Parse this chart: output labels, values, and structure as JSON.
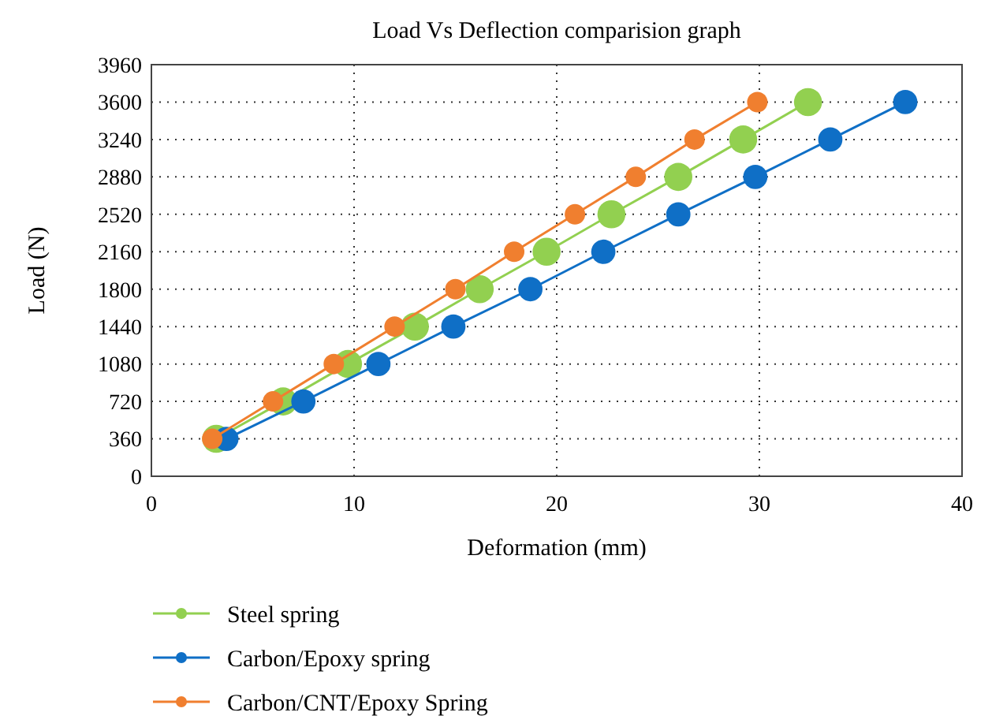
{
  "chart_data": {
    "type": "line",
    "title": "Load Vs Deflection comparision graph",
    "xlabel": "Deformation (mm)",
    "ylabel": "Load (N)",
    "xlim": [
      0,
      40
    ],
    "xticks": [
      0,
      10,
      20,
      30,
      40
    ],
    "ylim": [
      0,
      3960
    ],
    "yticks": [
      0,
      360,
      720,
      1080,
      1440,
      1800,
      2160,
      2520,
      2880,
      3240,
      3600,
      3960
    ],
    "grid": true,
    "legend": "bottom",
    "marker": "circle",
    "line_style": "solid",
    "series": [
      {
        "name": "Steel spring",
        "color": "#92d050",
        "x": [
          3.2,
          6.5,
          9.7,
          13,
          16.2,
          19.5,
          22.7,
          26,
          29.2,
          32.4
        ],
        "values": [
          360,
          720,
          1080,
          1440,
          1800,
          2160,
          2520,
          2880,
          3240,
          3600
        ]
      },
      {
        "name": "Carbon/Epoxy spring",
        "color": "#0f6fc6",
        "x": [
          3.7,
          7.5,
          11.2,
          14.9,
          18.7,
          22.3,
          26,
          29.8,
          33.5,
          37.2
        ],
        "values": [
          360,
          720,
          1080,
          1440,
          1800,
          2160,
          2520,
          2880,
          3240,
          3600
        ]
      },
      {
        "name": "Carbon/CNT/Epoxy Spring",
        "color": "#f07f2f",
        "x": [
          3,
          6,
          9,
          12,
          15,
          17.9,
          20.9,
          23.9,
          26.8,
          29.9
        ],
        "values": [
          360,
          720,
          1080,
          1440,
          1800,
          2160,
          2520,
          2880,
          3240,
          3600
        ]
      }
    ]
  }
}
